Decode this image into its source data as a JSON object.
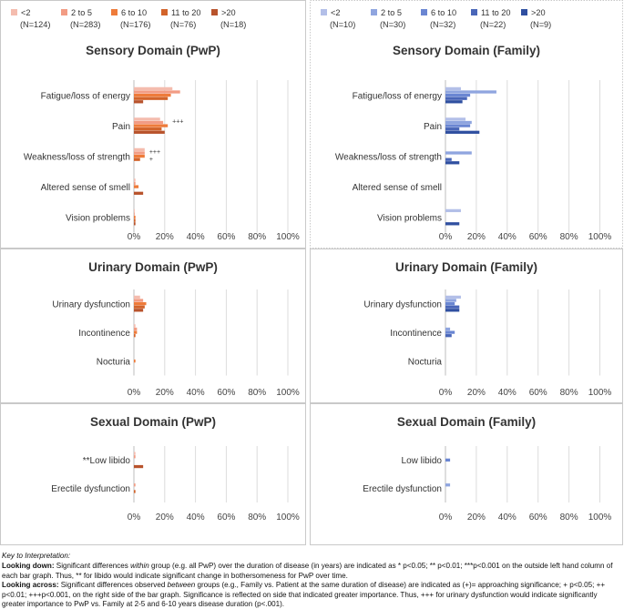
{
  "palettes": {
    "pwp": [
      "#f4bcae",
      "#f29c84",
      "#ee7b3a",
      "#d2632a",
      "#b8532c"
    ],
    "family": [
      "#b3bfe8",
      "#8fa5df",
      "#6a86d2",
      "#4966b8",
      "#2f4fa0"
    ]
  },
  "chart_data": [
    {
      "type": "bar",
      "orientation": "horizontal",
      "title": "Sensory Domain (PwP)",
      "legend": [
        {
          "name": "<2",
          "n": "(N=124)"
        },
        {
          "name": "2 to 5",
          "n": "(N=283)"
        },
        {
          "name": "6 to 10",
          "n": "(N=176)"
        },
        {
          "name": "11 to 20",
          "n": "(N=76)"
        },
        {
          "name": ">20",
          "n": "(N=18)"
        }
      ],
      "categories": [
        "Fatigue/loss of energy",
        "Pain",
        "Weakness/loss of strength",
        "Altered sense of smell",
        "Vision problems"
      ],
      "series": [
        {
          "name": "<2",
          "values": [
            25,
            17,
            7,
            1,
            0.5
          ]
        },
        {
          "name": "2 to 5",
          "values": [
            30,
            19,
            7,
            1,
            0.5
          ]
        },
        {
          "name": "6 to 10",
          "values": [
            24,
            22,
            7,
            3,
            1
          ]
        },
        {
          "name": "11 to 20",
          "values": [
            22,
            18,
            4,
            0,
            1
          ]
        },
        {
          "name": ">20",
          "values": [
            6,
            20,
            0,
            6,
            1
          ]
        }
      ],
      "annotations": [
        {
          "category": "Pain",
          "text": "+++"
        },
        {
          "category": "Weakness/loss of strength",
          "text": "+++"
        },
        {
          "category": "Weakness/loss of strength",
          "text": "+"
        }
      ],
      "xticks": [
        "0%",
        "20%",
        "40%",
        "60%",
        "80%",
        "100%"
      ],
      "xlim": [
        0,
        100
      ]
    },
    {
      "type": "bar",
      "orientation": "horizontal",
      "title": "Sensory Domain (Family)",
      "legend": [
        {
          "name": "<2",
          "n": "(N=10)"
        },
        {
          "name": "2 to 5",
          "n": "(N=30)"
        },
        {
          "name": "6 to 10",
          "n": "(N=32)"
        },
        {
          "name": "11 to 20",
          "n": "(N=22)"
        },
        {
          "name": ">20",
          "n": "(N=9)"
        }
      ],
      "categories": [
        "Fatigue/loss of energy",
        "Pain",
        "Weakness/loss of strength",
        "Altered sense of smell",
        "Vision problems"
      ],
      "series": [
        {
          "name": "<2",
          "values": [
            10,
            13,
            0,
            0,
            10
          ]
        },
        {
          "name": "2 to 5",
          "values": [
            33,
            17,
            17,
            0,
            0
          ]
        },
        {
          "name": "6 to 10",
          "values": [
            16,
            16,
            0,
            0,
            0
          ]
        },
        {
          "name": "11 to 20",
          "values": [
            14,
            9,
            4,
            0,
            0
          ]
        },
        {
          "name": ">20",
          "values": [
            11,
            22,
            9,
            0,
            9
          ]
        }
      ],
      "xticks": [
        "0%",
        "20%",
        "40%",
        "60%",
        "80%",
        "100%"
      ],
      "xlim": [
        0,
        100
      ]
    },
    {
      "type": "bar",
      "orientation": "horizontal",
      "title": "Urinary Domain (PwP)",
      "categories": [
        "Urinary dysfunction",
        "Incontinence",
        "Nocturia"
      ],
      "series": [
        {
          "name": "<2",
          "values": [
            4,
            1,
            0
          ]
        },
        {
          "name": "2 to 5",
          "values": [
            6,
            2,
            0
          ]
        },
        {
          "name": "6 to 10",
          "values": [
            8,
            2,
            1
          ]
        },
        {
          "name": "11 to 20",
          "values": [
            7,
            1,
            0
          ]
        },
        {
          "name": ">20",
          "values": [
            6,
            0,
            0
          ]
        }
      ],
      "xticks": [
        "0%",
        "20%",
        "40%",
        "60%",
        "80%",
        "100%"
      ],
      "xlim": [
        0,
        100
      ]
    },
    {
      "type": "bar",
      "orientation": "horizontal",
      "title": "Urinary Domain (Family)",
      "categories": [
        "Urinary dysfunction",
        "Incontinence",
        "Nocturia"
      ],
      "series": [
        {
          "name": "<2",
          "values": [
            10,
            0,
            0
          ]
        },
        {
          "name": "2 to 5",
          "values": [
            7,
            3,
            0
          ]
        },
        {
          "name": "6 to 10",
          "values": [
            6,
            6,
            0
          ]
        },
        {
          "name": "11 to 20",
          "values": [
            9,
            4,
            0
          ]
        },
        {
          "name": ">20",
          "values": [
            9,
            0,
            0
          ]
        }
      ],
      "xticks": [
        "0%",
        "20%",
        "40%",
        "60%",
        "80%",
        "100%"
      ],
      "xlim": [
        0,
        100
      ]
    },
    {
      "type": "bar",
      "orientation": "horizontal",
      "title": "Sexual Domain (PwP)",
      "categories": [
        "**Low libido",
        "Erectile dysfunction"
      ],
      "series": [
        {
          "name": "<2",
          "values": [
            1,
            0
          ]
        },
        {
          "name": "2 to 5",
          "values": [
            1,
            1
          ]
        },
        {
          "name": "6 to 10",
          "values": [
            0,
            0
          ]
        },
        {
          "name": "11 to 20",
          "values": [
            0,
            1
          ]
        },
        {
          "name": ">20",
          "values": [
            6,
            0
          ]
        }
      ],
      "xticks": [
        "0%",
        "20%",
        "40%",
        "60%",
        "80%",
        "100%"
      ],
      "xlim": [
        0,
        100
      ]
    },
    {
      "type": "bar",
      "orientation": "horizontal",
      "title": "Sexual Domain (Family)",
      "categories": [
        "Low libido",
        "Erectile dysfunction"
      ],
      "series": [
        {
          "name": "<2",
          "values": [
            0,
            0
          ]
        },
        {
          "name": "2 to 5",
          "values": [
            0,
            3
          ]
        },
        {
          "name": "6 to 10",
          "values": [
            3,
            0
          ]
        },
        {
          "name": "11 to 20",
          "values": [
            0,
            0
          ]
        },
        {
          "name": ">20",
          "values": [
            0,
            0
          ]
        }
      ],
      "xticks": [
        "0%",
        "20%",
        "40%",
        "60%",
        "80%",
        "100%"
      ],
      "xlim": [
        0,
        100
      ]
    }
  ],
  "key": {
    "title": "Key to Interpretation:",
    "down_label": "Looking down:",
    "down_a": "  Significant differences ",
    "down_within": "within",
    "down_b": " group (e.g. all PwP) over the duration of disease (in years) are indicated as * p<0.05; ** p<0.01; ***p<0.001 on the outside left hand column of each bar graph.  Thus, ** for libido would indicate significant change in bothersomeness for PwP over time.",
    "across_label": "Looking across:",
    "across_a": "  Significant differences observed ",
    "across_between": "between",
    "across_b": " groups (e.g., Family vs. Patient at the same duration of disease) are indicated as  (+)= approaching significance; + p<0.05; ++ p<0.01; +++p<0.001, on the right side of the bar graph.  Significance is reflected on side that indicated greater importance. Thus, +++ for urinary dysfunction would indicate significantly greater importance to PwP vs. Family at 2-5 and 6-10 years disease duration (p<.001)."
  }
}
